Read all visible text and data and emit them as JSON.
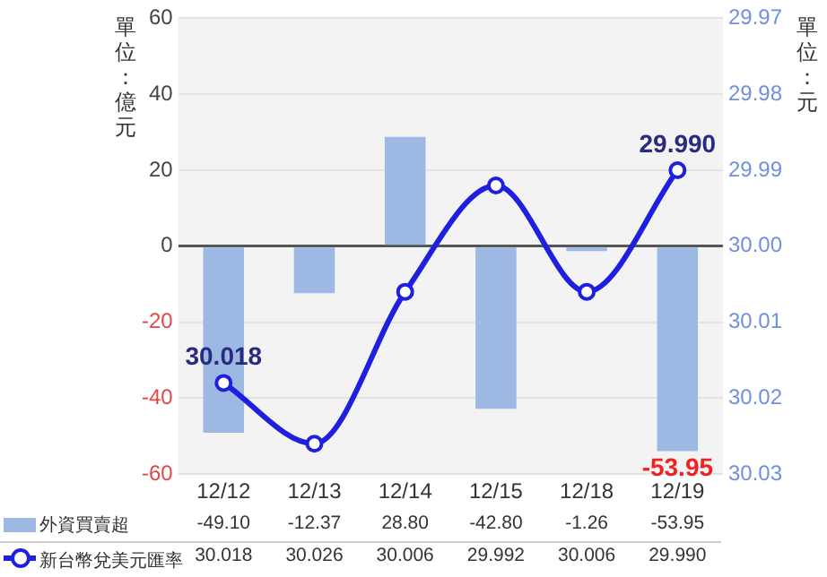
{
  "chart_data": {
    "type": "bar",
    "ylabel": "單位：億元",
    "y2label": "單位：元",
    "categories": [
      "12/12",
      "12/13",
      "12/14",
      "12/15",
      "12/18",
      "12/19"
    ],
    "series": [
      {
        "name": "外資買賣超",
        "color": "#9db8e3",
        "values": [
          -49.1,
          -12.37,
          28.8,
          -42.8,
          -1.26,
          -53.95
        ],
        "value_labels": [
          "-49.10",
          "-12.37",
          "28.80",
          "-42.80",
          "-1.26",
          "-53.95"
        ]
      },
      {
        "name": "新台幣兌美元匯率",
        "type": "line",
        "axis": "y2",
        "color": "#1f1fe0",
        "values": [
          30.018,
          30.026,
          30.006,
          29.992,
          30.006,
          29.99
        ],
        "value_labels": [
          "30.018",
          "30.026",
          "30.006",
          "29.992",
          "30.006",
          "29.990"
        ]
      }
    ],
    "annotations": [
      "30.018",
      "29.990",
      {
        "text": "-53.95",
        "x": "12/19",
        "y": -53.95
      }
    ],
    "ylim": [
      -60,
      60
    ],
    "yticks": [
      -60,
      -40,
      -20,
      0,
      20,
      40,
      60
    ],
    "y2lim": [
      30.03,
      29.97
    ],
    "y2ticks": [
      {
        "value": 30.03,
        "label": "30.03"
      },
      {
        "value": 30.02,
        "label": "30.02"
      },
      {
        "value": 30.01,
        "label": "30.01"
      },
      {
        "value": 30,
        "label": "30.00"
      },
      {
        "value": 29.99,
        "label": "29.99"
      },
      {
        "value": 29.98,
        "label": "29.98"
      },
      {
        "value": 29.97,
        "label": "29.97"
      }
    ],
    "grid": "y",
    "data_labels": true,
    "legend": "bottom",
    "marker": "circle",
    "line_style": "solid"
  }
}
